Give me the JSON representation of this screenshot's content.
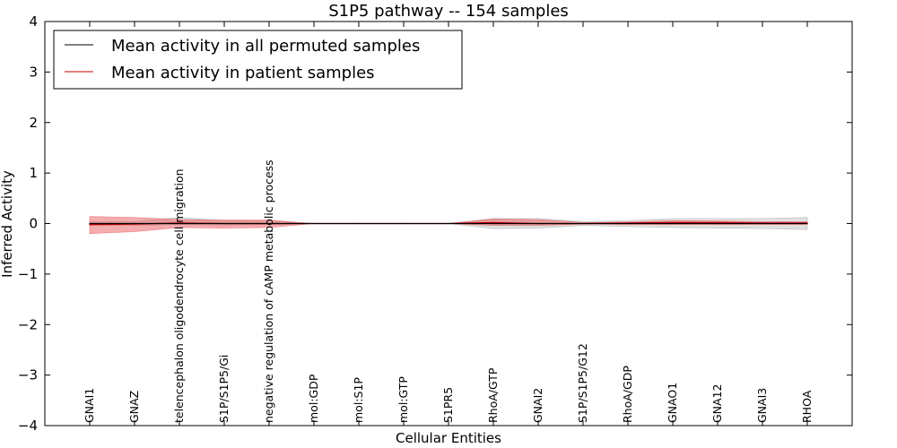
{
  "chart_data": {
    "type": "line",
    "title": "S1P5 pathway -- 154 samples",
    "xlabel": "Cellular Entities",
    "ylabel": "Inferred Activity",
    "ylim": [
      -4,
      4
    ],
    "yticks": [
      4,
      3,
      2,
      1,
      0,
      -1,
      -2,
      -3,
      -4
    ],
    "ytick_labels": [
      "4",
      "3",
      "2",
      "1",
      "0",
      "−1",
      "−2",
      "−3",
      "−4"
    ],
    "legend_position": "top-left",
    "categories": [
      "GNAI1",
      "GNAZ",
      "telencephalon oligodendrocyte cell migration",
      "S1P/S1P5/Gi",
      "negative regulation of cAMP metabolic process",
      "mol:GDP",
      "mol:S1P",
      "mol:GTP",
      "S1PR5",
      "RhoA/GTP",
      "GNAI2",
      "S1P/S1P5/G12",
      "RhoA/GDP",
      "GNAO1",
      "GNA12",
      "GNAI3",
      "RHOA"
    ],
    "series": [
      {
        "name": "Mean activity in all permuted samples",
        "color": "#000000",
        "values": [
          0.0,
          0.0,
          0.0,
          0.0,
          0.0,
          0.0,
          0.0,
          0.0,
          0.0,
          0.0,
          0.0,
          0.0,
          0.0,
          0.0,
          0.0,
          0.0,
          0.0
        ],
        "band_lower": [
          -0.04,
          -0.04,
          -0.02,
          -0.03,
          -0.02,
          0.0,
          0.0,
          0.0,
          0.0,
          -0.1,
          -0.09,
          -0.04,
          -0.06,
          -0.08,
          -0.09,
          -0.1,
          -0.12
        ],
        "band_upper": [
          0.04,
          0.04,
          0.12,
          0.06,
          0.05,
          0.0,
          0.0,
          0.0,
          0.0,
          0.1,
          0.1,
          0.04,
          0.06,
          0.1,
          0.1,
          0.1,
          0.12
        ],
        "band_color": "#999999"
      },
      {
        "name": "Mean activity in patient samples",
        "color": "#cc0000",
        "values": [
          -0.02,
          -0.01,
          0.01,
          0.0,
          0.0,
          0.0,
          0.0,
          0.0,
          0.0,
          0.02,
          0.0,
          0.0,
          0.01,
          0.02,
          0.02,
          0.01,
          0.01
        ],
        "band_lower": [
          -0.2,
          -0.16,
          -0.08,
          -0.09,
          -0.08,
          0.0,
          0.0,
          0.0,
          0.0,
          -0.04,
          -0.04,
          -0.01,
          -0.02,
          -0.02,
          -0.02,
          -0.02,
          -0.02
        ],
        "band_upper": [
          0.14,
          0.12,
          0.08,
          0.07,
          0.07,
          0.0,
          0.0,
          0.0,
          0.0,
          0.09,
          0.08,
          0.02,
          0.03,
          0.06,
          0.05,
          0.04,
          0.04
        ],
        "band_color": "#e8474c"
      }
    ]
  }
}
